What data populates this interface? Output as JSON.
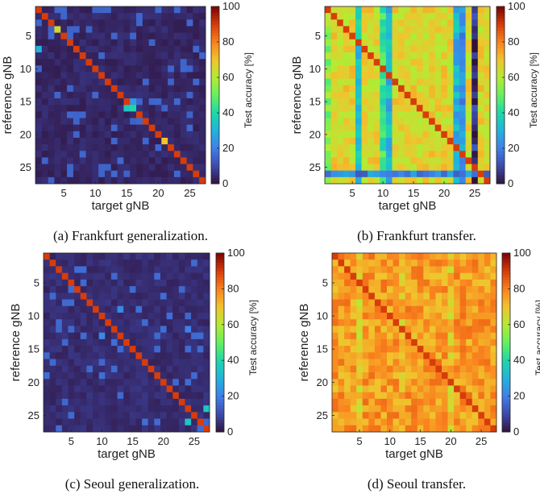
{
  "chart_data": [
    {
      "type": "heatmap",
      "caption": "(a) Frankfurt generalization.",
      "xlabel": "target gNB",
      "ylabel": "reference gNB",
      "colorbar_label": "Test accuracy [%]",
      "colorbar_ticks": [
        0,
        20,
        40,
        60,
        80,
        100
      ],
      "clim": [
        0,
        100
      ],
      "n": 27,
      "xticks": [
        5,
        10,
        15,
        20,
        25
      ],
      "yticks": [
        5,
        10,
        15,
        20,
        25
      ],
      "colormap": "turbo",
      "pattern": "diagonal-dominant",
      "diagonal_value": 90,
      "offdiagonal_value": 2,
      "highlights": [
        [
          15,
          16,
          25
        ],
        [
          16,
          15,
          35
        ],
        [
          16,
          16,
          40
        ],
        [
          21,
          21,
          70
        ],
        [
          4,
          4,
          65
        ],
        [
          7,
          1,
          30
        ]
      ]
    },
    {
      "type": "heatmap",
      "caption": "(b) Frankfurt transfer.",
      "xlabel": "target gNB",
      "ylabel": "reference gNB",
      "colorbar_label": "Test accuracy [%]",
      "colorbar_ticks": [
        0,
        20,
        40,
        60,
        80,
        100
      ],
      "clim": [
        0,
        100
      ],
      "n": 27,
      "xticks": [
        5,
        10,
        15,
        20,
        25
      ],
      "yticks": [
        5,
        10,
        15,
        20,
        25
      ],
      "colormap": "turbo",
      "pattern": "transfer",
      "diagonal_value": 90,
      "offdiagonal_value": 66,
      "column_values": {
        "6": 35,
        "11": 32,
        "10": 45,
        "22": 30,
        "23": 25,
        "25": 5,
        "1": 55
      },
      "row_values": {
        "26": 20
      }
    },
    {
      "type": "heatmap",
      "caption": "(c) Seoul generalization.",
      "xlabel": "target gNB",
      "ylabel": "reference gNB",
      "colorbar_label": "Test accuracy [%]",
      "colorbar_ticks": [
        0,
        20,
        40,
        60,
        80,
        100
      ],
      "clim": [
        0,
        100
      ],
      "n": 27,
      "xticks": [
        5,
        10,
        15,
        20,
        25
      ],
      "yticks": [
        5,
        10,
        15,
        20,
        25
      ],
      "colormap": "turbo",
      "pattern": "diagonal-dominant",
      "diagonal_value": 90,
      "offdiagonal_value": 3,
      "highlights": [
        [
          26,
          24,
          35
        ],
        [
          24,
          27,
          35
        ],
        [
          13,
          10,
          22
        ],
        [
          9,
          13,
          22
        ],
        [
          12,
          24,
          20
        ]
      ]
    },
    {
      "type": "heatmap",
      "caption": "(d) Seoul transfer.",
      "xlabel": "target gNB",
      "ylabel": "reference gNB",
      "colorbar_label": "Test accuracy [%]",
      "colorbar_ticks": [
        0,
        20,
        40,
        60,
        80,
        100
      ],
      "clim": [
        0,
        100
      ],
      "n": 27,
      "xticks": [
        5,
        10,
        15,
        20,
        25
      ],
      "yticks": [
        5,
        10,
        15,
        20,
        25
      ],
      "colormap": "turbo",
      "pattern": "transfer",
      "diagonal_value": 90,
      "offdiagonal_value": 76,
      "column_values": {
        "5": 68,
        "12": 72,
        "20": 70
      },
      "row_values": {}
    }
  ]
}
